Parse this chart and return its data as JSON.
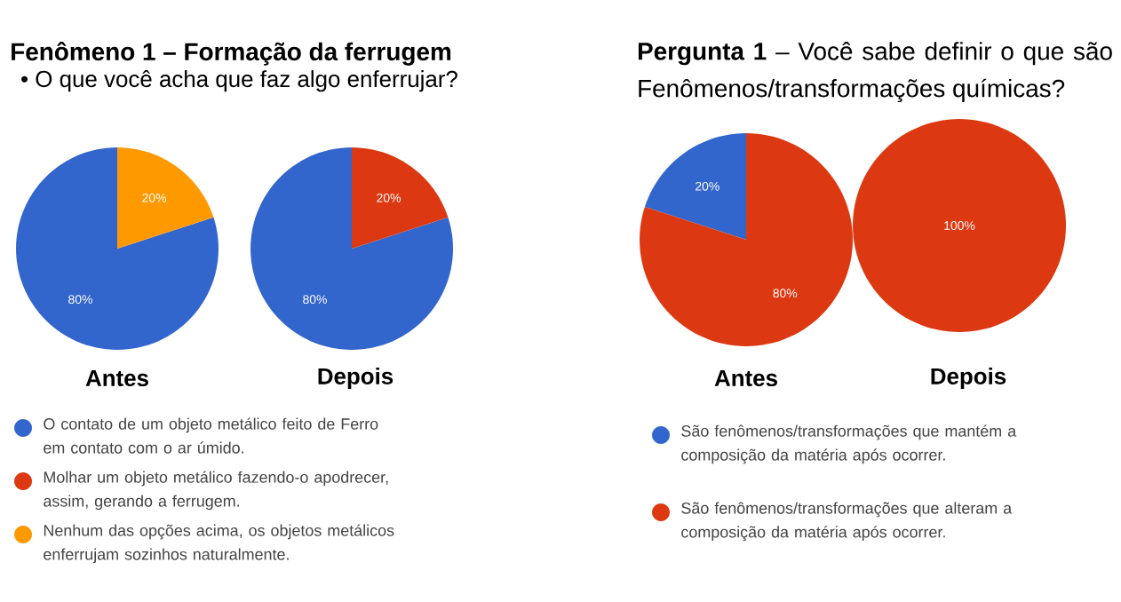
{
  "chart_data": [
    {
      "type": "pie",
      "title": "Fenômeno 1 – Formação da ferrugem",
      "subtitle": "• O que você acha que faz algo enferrujar?",
      "xlabel": "Antes",
      "legend": "bottom",
      "categories": [
        "O contato de um objeto metálico feito de Ferro em contato com o ar úmido.",
        "Molhar um objeto metálico fazendo-o apodrecer, assim, gerando a ferrugem.",
        "Nenhum das opções acima, os objetos metálicos enferrujam sozinhos naturalmente."
      ],
      "values": [
        80,
        0,
        20
      ],
      "value_labels": [
        "80%",
        null,
        "20%"
      ],
      "colors": [
        "#3366cc",
        "#dc3912",
        "#ff9900"
      ]
    },
    {
      "type": "pie",
      "xlabel": "Depois",
      "categories": [
        null,
        null,
        null
      ],
      "values": [
        80,
        20,
        0
      ],
      "value_labels": [
        "80%",
        "20%",
        null
      ],
      "colors": [
        "#3366cc",
        "#dc3912",
        "#ff9900"
      ]
    },
    {
      "type": "pie",
      "title": "**Pergunta 1** – Você sabe definir o que são Fenômenos/transformações químicas?",
      "xlabel": "Antes",
      "legend": "bottom",
      "categories": [
        "São fenômenos/transformações que mantém a composição da matéria após ocorrer.",
        "São fenômenos/transformações que alteram a composição da matéria após ocorrer."
      ],
      "values": [
        20,
        80
      ],
      "value_labels": [
        "20%",
        "80%"
      ],
      "colors": [
        "#3366cc",
        "#dc3912"
      ]
    },
    {
      "type": "pie",
      "xlabel": "Depois",
      "categories": [
        null,
        null
      ],
      "values": [
        0,
        100
      ],
      "value_labels": [
        null,
        "100%"
      ],
      "colors": [
        "#3366cc",
        "#dc3912"
      ]
    }
  ]
}
